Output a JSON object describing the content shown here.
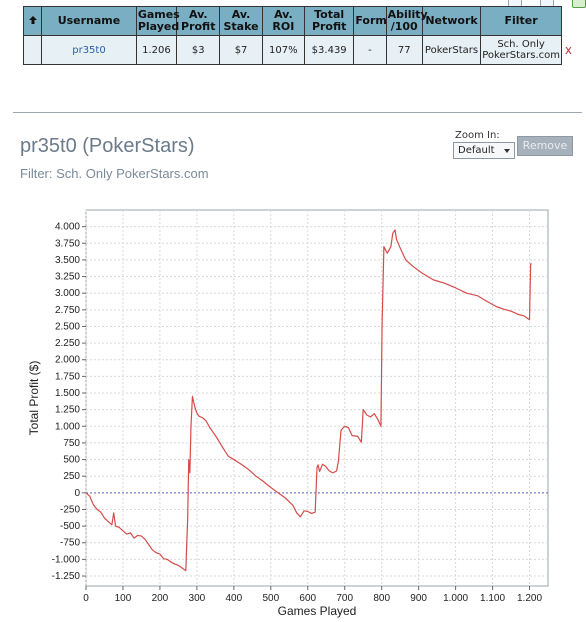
{
  "table": {
    "sort_icon": "up-arrow-icon",
    "headers": {
      "username": "Username",
      "games_played": "Games Played",
      "av_profit": "Av. Profit",
      "av_stake": "Av. Stake",
      "av_roi": "Av. ROI",
      "total_profit": "Total Profit",
      "form": "Form",
      "ability": "Ability /100",
      "network": "Network",
      "filter": "Filter"
    },
    "row": {
      "username": "pr35t0",
      "games_played": "1.206",
      "av_profit": "$3",
      "av_stake": "$7",
      "av_roi": "107%",
      "total_profit": "$3.439",
      "form": "-",
      "ability": "77",
      "network": "PokerStars",
      "filter": "Sch. Only PokerStars.com",
      "remove": "x"
    }
  },
  "chart_section": {
    "title": "pr35t0 (PokerStars)",
    "filter_text": "Filter: Sch. Only PokerStars.com",
    "zoom_label": "Zoom In:",
    "zoom_value": "Default",
    "remove_label": "Remove"
  },
  "colors": {
    "header_bg": "#7aaec2",
    "row_bg": "#e7f0f4",
    "line": "#d64b4b",
    "zero_line": "#5c66d6",
    "grid": "#d9d9d9"
  },
  "chart_data": {
    "type": "line",
    "xlabel": "Games Played",
    "ylabel": "Total Profit ($)",
    "xlim": [
      0,
      1250
    ],
    "ylim": [
      -1400,
      4250
    ],
    "x_ticks": [
      0,
      100,
      200,
      300,
      400,
      500,
      600,
      700,
      800,
      900,
      1000,
      1100,
      1200
    ],
    "x_tick_labels": [
      "0",
      "100",
      "200",
      "300",
      "400",
      "500",
      "600",
      "700",
      "800",
      "900",
      "1.000",
      "1.100",
      "1.200"
    ],
    "y_ticks": [
      -1250,
      -1000,
      -750,
      -500,
      -250,
      0,
      250,
      500,
      750,
      1000,
      1250,
      1500,
      1750,
      2000,
      2250,
      2500,
      2750,
      3000,
      3250,
      3500,
      3750,
      4000
    ],
    "y_tick_labels": [
      "-1.250",
      "-1.000",
      "-750",
      "-500",
      "-250",
      "0",
      "250",
      "500",
      "750",
      "1.000",
      "1.250",
      "1.500",
      "1.750",
      "2.000",
      "2.250",
      "2.500",
      "2.750",
      "3.000",
      "3.250",
      "3.500",
      "3.750",
      "4.000"
    ],
    "grid": true,
    "series": [
      {
        "x": [
          0,
          10,
          20,
          30,
          40,
          50,
          60,
          70,
          75,
          80,
          90,
          100,
          110,
          120,
          130,
          140,
          150,
          160,
          170,
          180,
          190,
          200,
          210,
          220,
          230,
          240,
          250,
          260,
          270,
          275,
          278,
          281,
          284,
          288,
          292,
          296,
          300,
          306,
          315,
          325,
          335,
          345,
          355,
          370,
          385,
          400,
          420,
          440,
          460,
          480,
          500,
          520,
          540,
          560,
          570,
          580,
          590,
          600,
          610,
          620,
          625,
          628,
          632,
          640,
          648,
          658,
          668,
          678,
          683,
          690,
          700,
          710,
          720,
          735,
          745,
          750,
          760,
          770,
          780,
          790,
          798,
          801,
          806,
          815,
          825,
          830,
          836,
          840,
          850,
          865,
          885,
          910,
          940,
          970,
          1000,
          1030,
          1060,
          1090,
          1110,
          1130,
          1150,
          1170,
          1185,
          1195,
          1200,
          1203,
          1206
        ],
        "y": [
          0,
          -50,
          -180,
          -250,
          -290,
          -380,
          -430,
          -480,
          -300,
          -500,
          -520,
          -570,
          -620,
          -600,
          -680,
          -640,
          -650,
          -700,
          -780,
          -860,
          -900,
          -920,
          -990,
          -1000,
          -1040,
          -1070,
          -1090,
          -1130,
          -1170,
          -400,
          500,
          300,
          1000,
          1450,
          1350,
          1260,
          1200,
          1150,
          1130,
          1080,
          980,
          900,
          820,
          680,
          550,
          500,
          430,
          350,
          250,
          170,
          80,
          0,
          -80,
          -190,
          -300,
          -360,
          -270,
          -280,
          -310,
          -290,
          380,
          420,
          320,
          430,
          400,
          330,
          300,
          330,
          480,
          940,
          1000,
          980,
          860,
          850,
          760,
          1250,
          1170,
          1140,
          1190,
          1100,
          1000,
          2500,
          3700,
          3600,
          3700,
          3900,
          3950,
          3810,
          3680,
          3500,
          3400,
          3300,
          3200,
          3150,
          3080,
          3000,
          2960,
          2860,
          2800,
          2760,
          2730,
          2680,
          2660,
          2620,
          2600,
          3440,
          3440
        ]
      }
    ]
  }
}
